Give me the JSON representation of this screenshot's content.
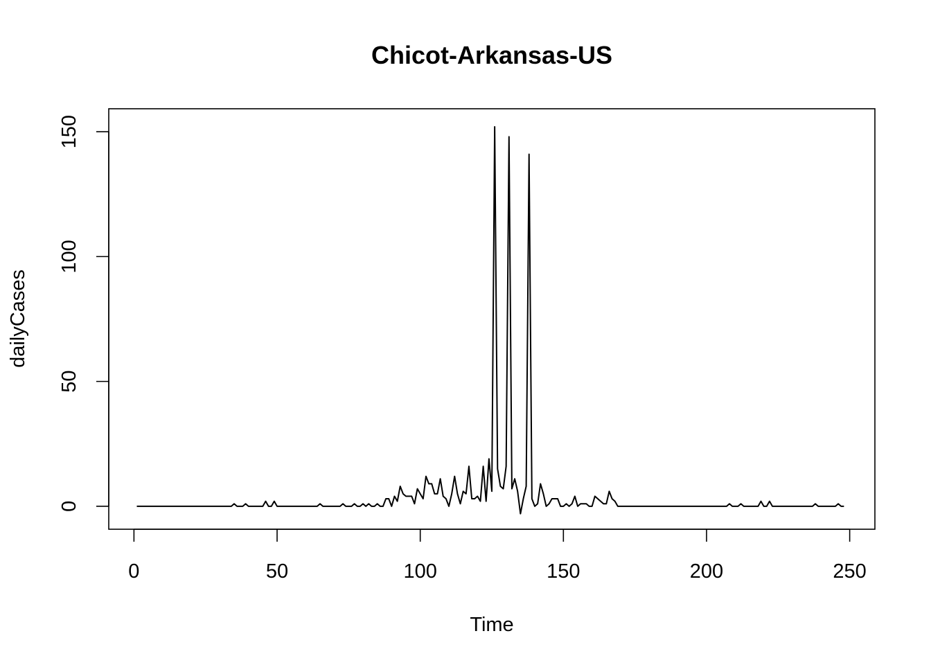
{
  "chart_data": {
    "type": "line",
    "title": "Chicot-Arkansas-US",
    "xlabel": "Time",
    "ylabel": "dailyCases",
    "xlim": [
      -8.8,
      258.8
    ],
    "ylim": [
      -9.2,
      159.2
    ],
    "xticks": [
      0,
      50,
      100,
      150,
      200,
      250
    ],
    "yticks": [
      0,
      50,
      100,
      150
    ],
    "grid": false,
    "series": [
      {
        "x_start": 1,
        "values": [
          0,
          0,
          0,
          0,
          0,
          0,
          0,
          0,
          0,
          0,
          0,
          0,
          0,
          0,
          0,
          0,
          0,
          0,
          0,
          0,
          0,
          0,
          0,
          0,
          0,
          0,
          0,
          0,
          0,
          0,
          0,
          0,
          0,
          0,
          1,
          0,
          0,
          0,
          1,
          0,
          0,
          0,
          0,
          0,
          0,
          2,
          0,
          0,
          2,
          0,
          0,
          0,
          0,
          0,
          0,
          0,
          0,
          0,
          0,
          0,
          0,
          0,
          0,
          0,
          1,
          0,
          0,
          0,
          0,
          0,
          0,
          0,
          1,
          0,
          0,
          0,
          1,
          0,
          0,
          1,
          0,
          1,
          0,
          0,
          1,
          0,
          0,
          3,
          3,
          0,
          4,
          2,
          8,
          5,
          4,
          4,
          4,
          1,
          7,
          5,
          3,
          12,
          9,
          9,
          5,
          5,
          11,
          4,
          3,
          0,
          5,
          12,
          5,
          1,
          6,
          5,
          16,
          3,
          3,
          4,
          2,
          16,
          2,
          19,
          6,
          152,
          15,
          8,
          7,
          16,
          148,
          7,
          11,
          6,
          -3,
          3,
          8,
          141,
          3,
          0,
          1,
          9,
          5,
          0,
          1,
          3,
          3,
          3,
          0,
          0,
          1,
          0,
          1,
          4,
          0,
          1,
          1,
          1,
          0,
          0,
          4,
          3,
          2,
          1,
          1,
          6,
          3,
          2,
          0,
          0,
          0,
          0,
          0,
          0,
          0,
          0,
          0,
          0,
          0,
          0,
          0,
          0,
          0,
          0,
          0,
          0,
          0,
          0,
          0,
          0,
          0,
          0,
          0,
          0,
          0,
          0,
          0,
          0,
          0,
          0,
          0,
          0,
          0,
          0,
          0,
          0,
          0,
          1,
          0,
          0,
          0,
          1,
          0,
          0,
          0,
          0,
          0,
          0,
          2,
          0,
          0,
          2,
          0,
          0,
          0,
          0,
          0,
          0,
          0,
          0,
          0,
          0,
          0,
          0,
          0,
          0,
          0,
          1,
          0,
          0,
          0,
          0,
          0,
          0,
          0,
          1,
          0,
          0
        ]
      }
    ]
  }
}
